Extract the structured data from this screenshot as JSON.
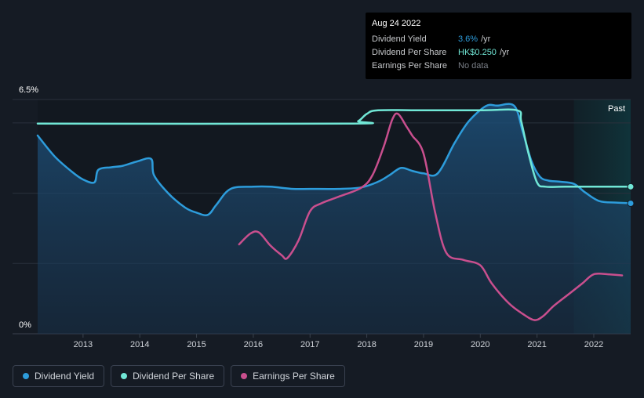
{
  "tooltip": {
    "date": "Aug 24 2022",
    "rows": [
      {
        "label": "Dividend Yield",
        "value": "3.6%",
        "unit": "/yr",
        "color": "#2d9cdb"
      },
      {
        "label": "Dividend Per Share",
        "value": "HK$0.250",
        "unit": "/yr",
        "color": "#71e7d6"
      },
      {
        "label": "Earnings Per Share",
        "value": "No data",
        "unit": "",
        "color": "#7a7f87"
      }
    ]
  },
  "past_label": "Past",
  "legend": [
    {
      "label": "Dividend Yield",
      "color": "#2d9cdb"
    },
    {
      "label": "Dividend Per Share",
      "color": "#71e7d6"
    },
    {
      "label": "Earnings Per Share",
      "color": "#c94f8e"
    }
  ],
  "chart_data": {
    "type": "line",
    "y_tick_labels": [
      "6.5%",
      "0%"
    ],
    "ylim": [
      0,
      6.5
    ],
    "xlim": [
      2012.2,
      2022.65
    ],
    "x_ticks": [
      2013,
      2014,
      2015,
      2016,
      2017,
      2018,
      2019,
      2020,
      2021,
      2022
    ],
    "past_region_start": 2021.65,
    "grid": true,
    "series": [
      {
        "name": "Dividend Yield",
        "color": "#2d9cdb",
        "area": true,
        "points": [
          [
            2012.2,
            5.5
          ],
          [
            2012.5,
            4.92
          ],
          [
            2012.8,
            4.5
          ],
          [
            2013.0,
            4.28
          ],
          [
            2013.2,
            4.2
          ],
          [
            2013.27,
            4.55
          ],
          [
            2013.5,
            4.62
          ],
          [
            2013.7,
            4.66
          ],
          [
            2013.95,
            4.78
          ],
          [
            2014.2,
            4.85
          ],
          [
            2014.25,
            4.4
          ],
          [
            2014.5,
            3.9
          ],
          [
            2014.8,
            3.5
          ],
          [
            2015.0,
            3.36
          ],
          [
            2015.2,
            3.3
          ],
          [
            2015.35,
            3.58
          ],
          [
            2015.6,
            4.02
          ],
          [
            2016.0,
            4.08
          ],
          [
            2016.3,
            4.08
          ],
          [
            2016.7,
            4.02
          ],
          [
            2017.0,
            4.02
          ],
          [
            2017.5,
            4.02
          ],
          [
            2017.9,
            4.06
          ],
          [
            2018.2,
            4.22
          ],
          [
            2018.4,
            4.4
          ],
          [
            2018.6,
            4.6
          ],
          [
            2018.8,
            4.52
          ],
          [
            2019.0,
            4.45
          ],
          [
            2019.25,
            4.45
          ],
          [
            2019.55,
            5.3
          ],
          [
            2019.8,
            5.9
          ],
          [
            2020.1,
            6.32
          ],
          [
            2020.3,
            6.33
          ],
          [
            2020.6,
            6.32
          ],
          [
            2020.75,
            5.6
          ],
          [
            2020.9,
            4.8
          ],
          [
            2021.05,
            4.36
          ],
          [
            2021.2,
            4.25
          ],
          [
            2021.4,
            4.22
          ],
          [
            2021.65,
            4.16
          ],
          [
            2021.85,
            3.92
          ],
          [
            2022.1,
            3.68
          ],
          [
            2022.4,
            3.64
          ],
          [
            2022.65,
            3.62
          ]
        ]
      },
      {
        "name": "Dividend Per Share",
        "color": "#71e7d6",
        "area": false,
        "points": [
          [
            2012.2,
            5.83
          ],
          [
            2017.65,
            5.83
          ],
          [
            2017.85,
            5.9
          ],
          [
            2018.0,
            6.1
          ],
          [
            2018.2,
            6.2
          ],
          [
            2019.0,
            6.2
          ],
          [
            2020.0,
            6.2
          ],
          [
            2020.65,
            6.2
          ],
          [
            2020.72,
            5.9
          ],
          [
            2020.85,
            5.0
          ],
          [
            2021.0,
            4.2
          ],
          [
            2021.15,
            4.08
          ],
          [
            2021.5,
            4.08
          ],
          [
            2022.65,
            4.08
          ]
        ]
      },
      {
        "name": "Earnings Per Share",
        "color": "#c94f8e",
        "area": false,
        "points": [
          [
            2015.75,
            2.48
          ],
          [
            2015.95,
            2.78
          ],
          [
            2016.1,
            2.81
          ],
          [
            2016.3,
            2.45
          ],
          [
            2016.5,
            2.18
          ],
          [
            2016.6,
            2.1
          ],
          [
            2016.8,
            2.6
          ],
          [
            2017.0,
            3.4
          ],
          [
            2017.2,
            3.62
          ],
          [
            2017.5,
            3.8
          ],
          [
            2017.9,
            4.05
          ],
          [
            2018.1,
            4.4
          ],
          [
            2018.3,
            5.2
          ],
          [
            2018.45,
            5.95
          ],
          [
            2018.55,
            6.1
          ],
          [
            2018.7,
            5.75
          ],
          [
            2018.8,
            5.5
          ],
          [
            2019.0,
            5.0
          ],
          [
            2019.2,
            3.4
          ],
          [
            2019.4,
            2.25
          ],
          [
            2019.7,
            2.05
          ],
          [
            2020.0,
            1.9
          ],
          [
            2020.2,
            1.4
          ],
          [
            2020.5,
            0.85
          ],
          [
            2020.75,
            0.55
          ],
          [
            2020.95,
            0.38
          ],
          [
            2021.1,
            0.48
          ],
          [
            2021.3,
            0.78
          ],
          [
            2021.6,
            1.15
          ],
          [
            2021.8,
            1.4
          ],
          [
            2022.0,
            1.65
          ],
          [
            2022.25,
            1.65
          ],
          [
            2022.5,
            1.62
          ]
        ]
      }
    ]
  }
}
